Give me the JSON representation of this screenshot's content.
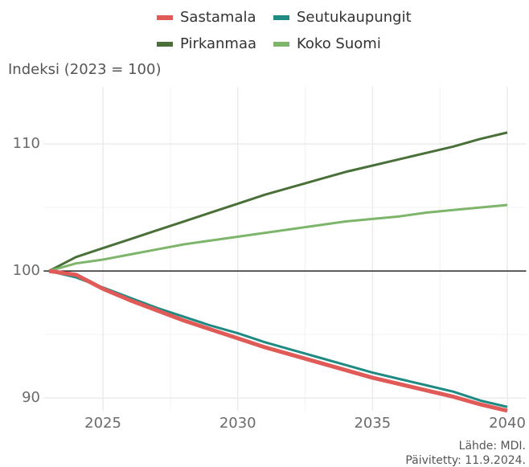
{
  "chart_data": {
    "type": "line",
    "y_label": "Indeksi (2023 = 100)",
    "notes": [
      "Lähde: MDI.",
      "Päivitetty: 11.9.2024."
    ],
    "x": [
      2023,
      2024,
      2025,
      2026,
      2027,
      2028,
      2029,
      2030,
      2031,
      2032,
      2033,
      2034,
      2035,
      2036,
      2037,
      2038,
      2039,
      2040
    ],
    "series": [
      {
        "name": "Sastamala",
        "color": "#e05a57",
        "width": 5,
        "values": [
          100,
          99.7,
          98.6,
          97.7,
          96.9,
          96.1,
          95.4,
          94.7,
          94.0,
          93.4,
          92.8,
          92.2,
          91.6,
          91.1,
          90.6,
          90.1,
          89.5,
          89.0
        ]
      },
      {
        "name": "Seutukaupungit",
        "color": "#1f8a82",
        "width": 3,
        "values": [
          100,
          99.5,
          98.7,
          97.9,
          97.1,
          96.4,
          95.7,
          95.1,
          94.4,
          93.8,
          93.2,
          92.6,
          92.0,
          91.5,
          91.0,
          90.5,
          89.8,
          89.3
        ]
      },
      {
        "name": "Pirkanmaa",
        "color": "#4a7039",
        "width": 3,
        "values": [
          100,
          101.1,
          101.8,
          102.5,
          103.2,
          103.9,
          104.6,
          105.3,
          106.0,
          106.6,
          107.2,
          107.8,
          108.3,
          108.8,
          109.3,
          109.8,
          110.4,
          110.9
        ]
      },
      {
        "name": "Koko Suomi",
        "color": "#7db56a",
        "width": 3,
        "values": [
          100,
          100.6,
          100.9,
          101.3,
          101.7,
          102.1,
          102.4,
          102.7,
          103.0,
          103.3,
          103.6,
          103.9,
          104.1,
          104.3,
          104.6,
          104.8,
          105.0,
          105.2
        ]
      }
    ],
    "reference_line": 100,
    "xlim": [
      2022.8,
      2040.7
    ],
    "ylim": [
      89,
      114.5
    ],
    "xticks": [
      2025,
      2030,
      2035,
      2040
    ],
    "yticks": [
      90,
      100,
      110
    ],
    "xticks_minor": [
      2027.5,
      2032.5,
      2037.5
    ],
    "yticks_minor": [
      95,
      105
    ],
    "grid": true
  }
}
